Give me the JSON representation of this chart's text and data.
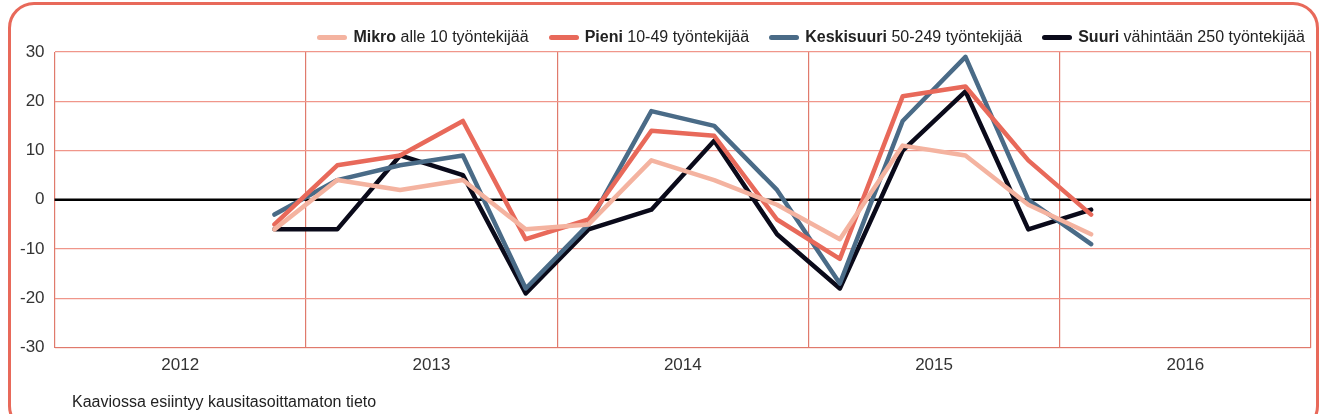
{
  "chart_data": {
    "type": "line",
    "x": [
      2012.875,
      2013.125,
      2013.375,
      2013.625,
      2013.875,
      2014.125,
      2014.375,
      2014.625,
      2014.875,
      2015.125,
      2015.375,
      2015.625,
      2015.875,
      2016.125
    ],
    "series": [
      {
        "name": "Mikro alle 10 työntekijää",
        "color": "#f4b3a0",
        "values": [
          -6,
          4,
          2,
          4,
          -6,
          -5,
          8,
          4,
          -1,
          -8,
          11,
          9,
          -1,
          -7
        ]
      },
      {
        "name": "Pieni 10-49 työntekijää",
        "color": "#e8695a",
        "values": [
          -5,
          7,
          9,
          16,
          -8,
          -4,
          14,
          13,
          -4,
          -12,
          21,
          23,
          8,
          -3
        ]
      },
      {
        "name": "Keskisuuri 50-249 työntekijää",
        "color": "#4a6b87",
        "values": [
          -3,
          4,
          7,
          9,
          -18,
          -5,
          18,
          15,
          2,
          -17,
          16,
          29,
          0,
          -9
        ]
      },
      {
        "name": "Suuri vähintään 250 työntekijää",
        "color": "#0a0a1a",
        "values": [
          -6,
          -6,
          9,
          5,
          -19,
          -6,
          -2,
          12,
          -7,
          -18,
          10,
          22,
          -6,
          -2
        ]
      }
    ],
    "xlim": [
      2012,
      2017
    ],
    "xticks": [
      {
        "value": 2012,
        "label": null
      },
      {
        "value": 2012.5,
        "label": "2012"
      },
      {
        "value": 2013,
        "label": null
      },
      {
        "value": 2013.5,
        "label": "2013"
      },
      {
        "value": 2014,
        "label": null
      },
      {
        "value": 2014.5,
        "label": "2014"
      },
      {
        "value": 2015,
        "label": null
      },
      {
        "value": 2015.5,
        "label": "2015"
      },
      {
        "value": 2016,
        "label": null
      },
      {
        "value": 2016.5,
        "label": "2016"
      },
      {
        "value": 2017,
        "label": null
      }
    ],
    "ylim": [
      -30,
      30
    ],
    "yticks": [
      -30,
      -20,
      -10,
      0,
      10,
      20,
      30
    ],
    "ref_lines": [
      {
        "axis": "y",
        "value": 0,
        "color": "#000000"
      }
    ],
    "grid": true,
    "legend": "top",
    "marker": "none",
    "line_style": "solid",
    "annotations": [
      "Kaaviossa esiintyy kausitasoittamaton tieto"
    ]
  }
}
